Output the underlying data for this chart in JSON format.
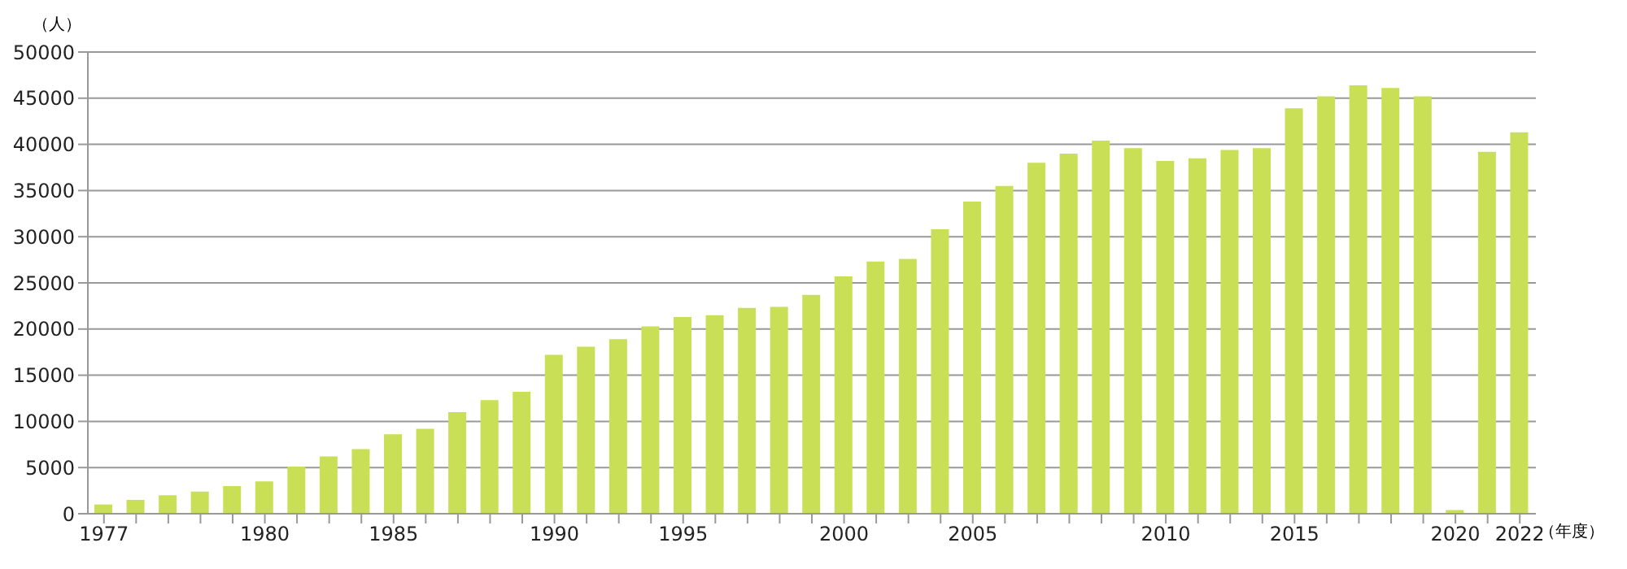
{
  "chart_data": {
    "type": "bar",
    "ylabel": "（人）",
    "xlabel": "（年度）",
    "categories": [
      "1977",
      null,
      null,
      null,
      null,
      "1980",
      null,
      null,
      null,
      "1985",
      null,
      null,
      null,
      null,
      "1990",
      null,
      null,
      null,
      "1995",
      null,
      null,
      null,
      null,
      "2000",
      null,
      null,
      null,
      "2005",
      null,
      null,
      null,
      null,
      null,
      "2010",
      null,
      null,
      null,
      "2015",
      null,
      null,
      null,
      null,
      "2020",
      null,
      "2022"
    ],
    "values": [
      1000,
      1500,
      2000,
      2400,
      3000,
      3500,
      5100,
      6200,
      7000,
      8600,
      9200,
      11000,
      12300,
      13200,
      17200,
      18100,
      18900,
      20300,
      21300,
      21500,
      22300,
      22400,
      23700,
      25700,
      27300,
      27600,
      30800,
      33800,
      35500,
      38000,
      39000,
      40400,
      39600,
      38200,
      38500,
      39400,
      39600,
      43900,
      45200,
      46400,
      46100,
      45200,
      400,
      39200,
      41300
    ],
    "color": "#c9df56",
    "ylim": [
      0,
      50000
    ],
    "yticks": [
      0,
      5000,
      10000,
      15000,
      20000,
      25000,
      30000,
      35000,
      40000,
      45000,
      50000
    ],
    "grid": "y",
    "legend": false
  }
}
